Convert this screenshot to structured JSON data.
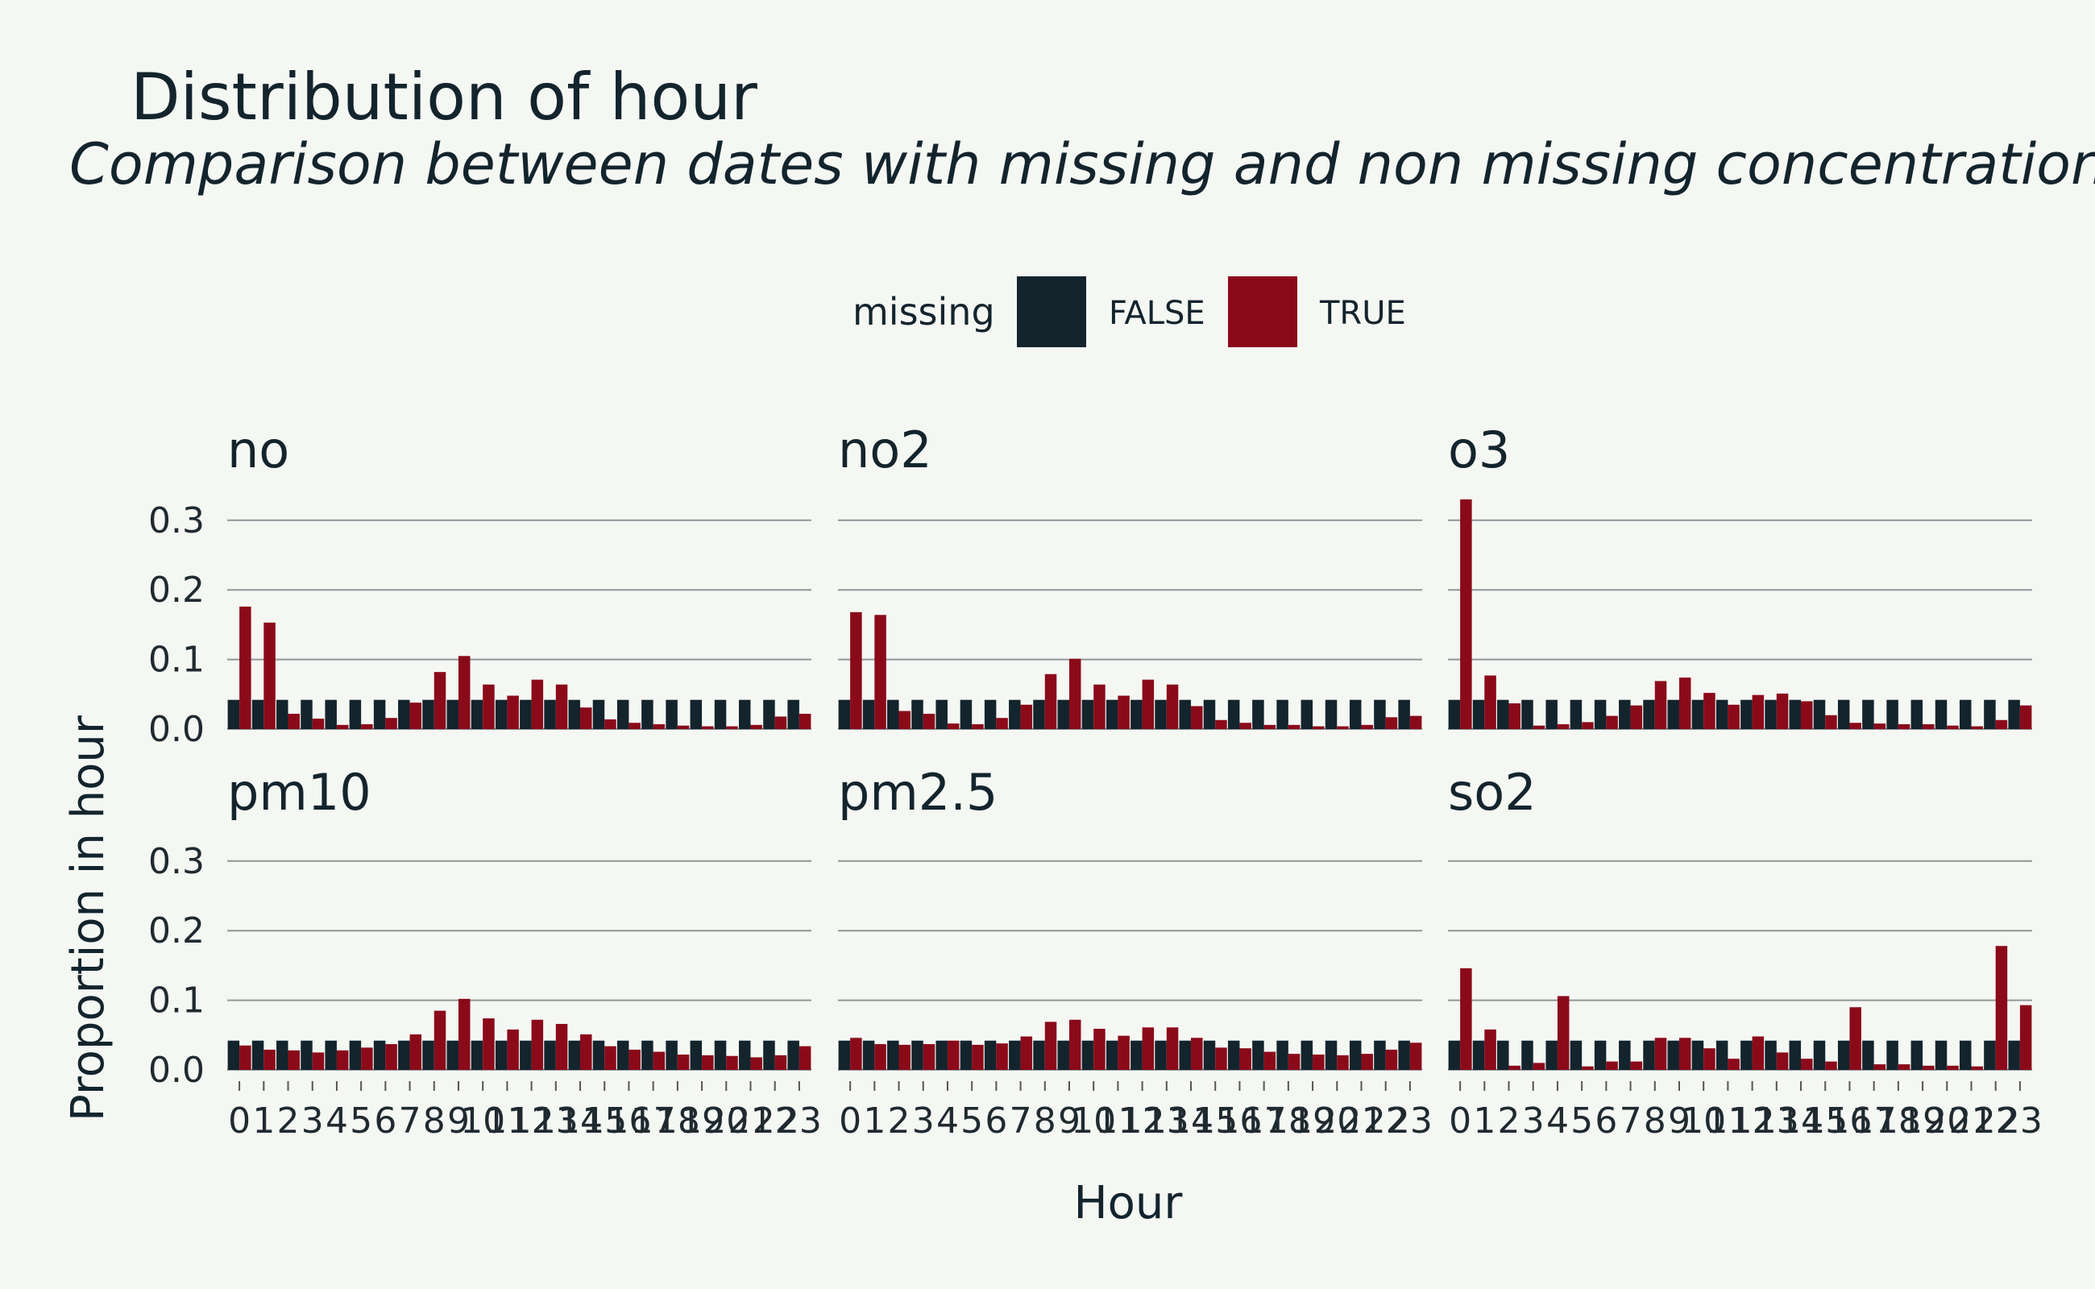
{
  "title": "Distribution of hour",
  "subtitle": "Comparison between dates with missing and non missing concentrations",
  "legend": {
    "title": "missing",
    "items": [
      {
        "label": "FALSE",
        "color": "#13242d"
      },
      {
        "label": "TRUE",
        "color": "#8b0a1a"
      }
    ]
  },
  "chart_data": {
    "type": "bar",
    "layout": "facet grid 2 rows x 3 columns, grouped bars",
    "xlabel": "Hour",
    "ylabel": "Proportion in hour",
    "ylim": [
      0,
      0.34
    ],
    "yticks": [
      "0.0",
      "0.1",
      "0.2",
      "0.3"
    ],
    "yticks_values": [
      0,
      0.1,
      0.2,
      0.3
    ],
    "grid": "horizontal major",
    "legend_position": "top",
    "categories": [
      "0",
      "1",
      "2",
      "3",
      "4",
      "5",
      "6",
      "7",
      "8",
      "9",
      "10",
      "11",
      "12",
      "13",
      "14",
      "15",
      "16",
      "17",
      "18",
      "19",
      "20",
      "21",
      "22",
      "23"
    ],
    "series_names": [
      "FALSE",
      "TRUE"
    ],
    "facets": [
      {
        "name": "no",
        "series": [
          {
            "name": "FALSE",
            "values": [
              0.042,
              0.042,
              0.042,
              0.042,
              0.042,
              0.042,
              0.042,
              0.042,
              0.042,
              0.042,
              0.042,
              0.042,
              0.042,
              0.042,
              0.042,
              0.042,
              0.042,
              0.042,
              0.042,
              0.042,
              0.042,
              0.042,
              0.042,
              0.042
            ]
          },
          {
            "name": "TRUE",
            "values": [
              0.176,
              0.153,
              0.022,
              0.015,
              0.006,
              0.007,
              0.016,
              0.038,
              0.082,
              0.105,
              0.064,
              0.048,
              0.071,
              0.064,
              0.031,
              0.014,
              0.009,
              0.007,
              0.005,
              0.004,
              0.004,
              0.006,
              0.018,
              0.022
            ]
          }
        ]
      },
      {
        "name": "no2",
        "series": [
          {
            "name": "FALSE",
            "values": [
              0.042,
              0.042,
              0.042,
              0.042,
              0.042,
              0.042,
              0.042,
              0.042,
              0.042,
              0.042,
              0.042,
              0.042,
              0.042,
              0.042,
              0.042,
              0.042,
              0.042,
              0.042,
              0.042,
              0.042,
              0.042,
              0.042,
              0.042,
              0.042
            ]
          },
          {
            "name": "TRUE",
            "values": [
              0.168,
              0.164,
              0.026,
              0.022,
              0.008,
              0.007,
              0.016,
              0.035,
              0.079,
              0.101,
              0.064,
              0.048,
              0.071,
              0.064,
              0.033,
              0.013,
              0.009,
              0.006,
              0.006,
              0.004,
              0.004,
              0.006,
              0.017,
              0.019
            ]
          }
        ]
      },
      {
        "name": "o3",
        "series": [
          {
            "name": "FALSE",
            "values": [
              0.042,
              0.042,
              0.042,
              0.042,
              0.042,
              0.042,
              0.042,
              0.042,
              0.042,
              0.042,
              0.042,
              0.042,
              0.042,
              0.042,
              0.042,
              0.042,
              0.042,
              0.042,
              0.042,
              0.042,
              0.042,
              0.042,
              0.042,
              0.042
            ]
          },
          {
            "name": "TRUE",
            "values": [
              0.33,
              0.077,
              0.037,
              0.005,
              0.007,
              0.01,
              0.019,
              0.034,
              0.069,
              0.074,
              0.052,
              0.035,
              0.049,
              0.051,
              0.04,
              0.02,
              0.009,
              0.008,
              0.007,
              0.007,
              0.005,
              0.004,
              0.013,
              0.034
            ]
          }
        ]
      },
      {
        "name": "pm10",
        "series": [
          {
            "name": "FALSE",
            "values": [
              0.042,
              0.042,
              0.042,
              0.042,
              0.042,
              0.042,
              0.042,
              0.042,
              0.042,
              0.042,
              0.042,
              0.042,
              0.042,
              0.042,
              0.042,
              0.042,
              0.042,
              0.042,
              0.042,
              0.042,
              0.042,
              0.042,
              0.042,
              0.042
            ]
          },
          {
            "name": "TRUE",
            "values": [
              0.035,
              0.029,
              0.028,
              0.025,
              0.028,
              0.032,
              0.037,
              0.051,
              0.085,
              0.102,
              0.074,
              0.058,
              0.072,
              0.066,
              0.051,
              0.034,
              0.029,
              0.026,
              0.022,
              0.021,
              0.02,
              0.018,
              0.021,
              0.034
            ]
          }
        ]
      },
      {
        "name": "pm2.5",
        "series": [
          {
            "name": "FALSE",
            "values": [
              0.042,
              0.042,
              0.042,
              0.042,
              0.042,
              0.042,
              0.042,
              0.042,
              0.042,
              0.042,
              0.042,
              0.042,
              0.042,
              0.042,
              0.042,
              0.042,
              0.042,
              0.042,
              0.042,
              0.042,
              0.042,
              0.042,
              0.042,
              0.042
            ]
          },
          {
            "name": "TRUE",
            "values": [
              0.046,
              0.037,
              0.036,
              0.037,
              0.042,
              0.036,
              0.038,
              0.048,
              0.069,
              0.072,
              0.059,
              0.049,
              0.061,
              0.061,
              0.046,
              0.032,
              0.031,
              0.026,
              0.023,
              0.022,
              0.021,
              0.023,
              0.029,
              0.039
            ]
          }
        ]
      },
      {
        "name": "so2",
        "series": [
          {
            "name": "FALSE",
            "values": [
              0.042,
              0.042,
              0.042,
              0.042,
              0.042,
              0.042,
              0.042,
              0.042,
              0.042,
              0.042,
              0.042,
              0.042,
              0.042,
              0.042,
              0.042,
              0.042,
              0.042,
              0.042,
              0.042,
              0.042,
              0.042,
              0.042,
              0.042,
              0.042
            ]
          },
          {
            "name": "TRUE",
            "values": [
              0.146,
              0.058,
              0.006,
              0.01,
              0.106,
              0.005,
              0.012,
              0.012,
              0.046,
              0.046,
              0.031,
              0.016,
              0.048,
              0.025,
              0.016,
              0.012,
              0.09,
              0.008,
              0.008,
              0.006,
              0.006,
              0.005,
              0.178,
              0.093
            ]
          }
        ]
      }
    ]
  }
}
